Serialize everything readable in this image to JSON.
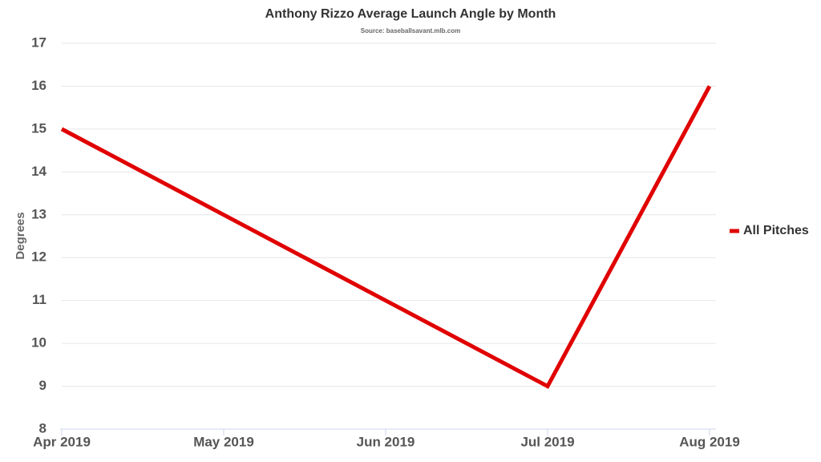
{
  "chart_data": {
    "type": "line",
    "title": "Anthony Rizzo Average Launch Angle by Month",
    "subtitle": "Source: baseballsavant.mlb.com",
    "y_label": "Degrees",
    "categories": [
      "Apr 2019",
      "May 2019",
      "Jun 2019",
      "Jul 2019",
      "Aug 2019"
    ],
    "series": [
      {
        "name": "All Pitches",
        "color": "#e00000",
        "values": [
          15,
          13,
          11,
          9,
          16
        ]
      }
    ],
    "ylim": [
      8,
      17
    ],
    "yticks": [
      8,
      9,
      10,
      11,
      12,
      13,
      14,
      15,
      16,
      17
    ],
    "grid": true,
    "legend": "right"
  }
}
